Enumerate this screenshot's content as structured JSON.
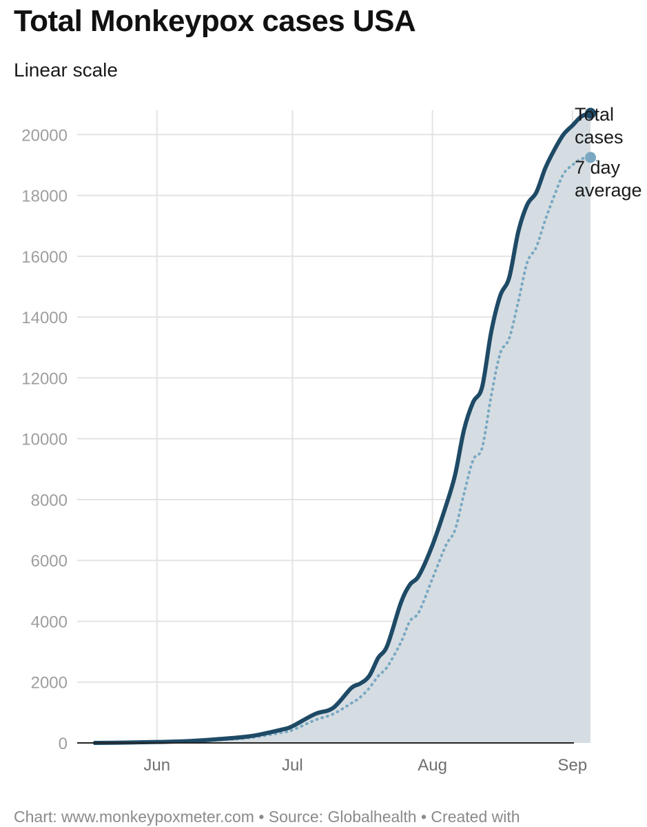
{
  "title": "Total Monkeypox cases USA",
  "subtitle": "Linear scale",
  "footer": "Chart: www.monkeypoxmeter.com • Source: Globalhealth • Created with",
  "colors": {
    "total": "#1e4a66",
    "avg": "#7aa8c2",
    "area": "#d5dde2",
    "grid": "#e3e3e3",
    "month_grid": "#cfcfcf"
  },
  "chart_data": {
    "type": "line",
    "x_unit": "date (2022)",
    "y_ticks": [
      "0",
      "2000",
      "4000",
      "6000",
      "8000",
      "10000",
      "12000",
      "14000",
      "16000",
      "18000",
      "20000"
    ],
    "ylim": [
      0,
      20800
    ],
    "xlim": [
      "2022-05-18",
      "2022-09-05"
    ],
    "x_ticks": [
      {
        "date": "2022-06-01",
        "label": "Jun"
      },
      {
        "date": "2022-07-01",
        "label": "Jul"
      },
      {
        "date": "2022-08-01",
        "label": "Aug"
      },
      {
        "date": "2022-09-01",
        "label": "Sep"
      }
    ],
    "legend_position": "end-of-lines",
    "series": [
      {
        "name": "Total cases",
        "style": "solid",
        "x": [
          "2022-05-18",
          "2022-05-25",
          "2022-06-01",
          "2022-06-08",
          "2022-06-15",
          "2022-06-22",
          "2022-06-29",
          "2022-07-01",
          "2022-07-06",
          "2022-07-10",
          "2022-07-14",
          "2022-07-16",
          "2022-07-18",
          "2022-07-20",
          "2022-07-22",
          "2022-07-25",
          "2022-07-27",
          "2022-07-29",
          "2022-08-01",
          "2022-08-04",
          "2022-08-06",
          "2022-08-08",
          "2022-08-10",
          "2022-08-12",
          "2022-08-14",
          "2022-08-16",
          "2022-08-18",
          "2022-08-20",
          "2022-08-22",
          "2022-08-24",
          "2022-08-26",
          "2022-08-28",
          "2022-08-30",
          "2022-09-01",
          "2022-09-03",
          "2022-09-05"
        ],
        "y": [
          0,
          10,
          30,
          60,
          130,
          230,
          450,
          550,
          950,
          1150,
          1800,
          1950,
          2200,
          2800,
          3200,
          4600,
          5200,
          5500,
          6500,
          7800,
          8800,
          10300,
          11200,
          11700,
          13500,
          14700,
          15300,
          16800,
          17700,
          18100,
          18900,
          19500,
          20000,
          20300,
          20600,
          20700
        ]
      },
      {
        "name": "7 day average",
        "style": "dotted",
        "x": [
          "2022-05-18",
          "2022-05-25",
          "2022-06-01",
          "2022-06-08",
          "2022-06-15",
          "2022-06-22",
          "2022-06-29",
          "2022-07-01",
          "2022-07-06",
          "2022-07-10",
          "2022-07-14",
          "2022-07-16",
          "2022-07-18",
          "2022-07-20",
          "2022-07-22",
          "2022-07-25",
          "2022-07-27",
          "2022-07-29",
          "2022-08-01",
          "2022-08-04",
          "2022-08-06",
          "2022-08-08",
          "2022-08-10",
          "2022-08-12",
          "2022-08-14",
          "2022-08-16",
          "2022-08-18",
          "2022-08-20",
          "2022-08-22",
          "2022-08-24",
          "2022-08-26",
          "2022-08-28",
          "2022-08-30",
          "2022-09-01",
          "2022-09-03",
          "2022-09-05"
        ],
        "y": [
          0,
          5,
          20,
          40,
          100,
          180,
          350,
          420,
          750,
          950,
          1300,
          1500,
          1800,
          2200,
          2500,
          3300,
          4000,
          4300,
          5400,
          6500,
          7000,
          8200,
          9300,
          9700,
          11400,
          12800,
          13300,
          14500,
          15800,
          16300,
          17200,
          18000,
          18700,
          19000,
          19200,
          19250
        ]
      }
    ]
  }
}
